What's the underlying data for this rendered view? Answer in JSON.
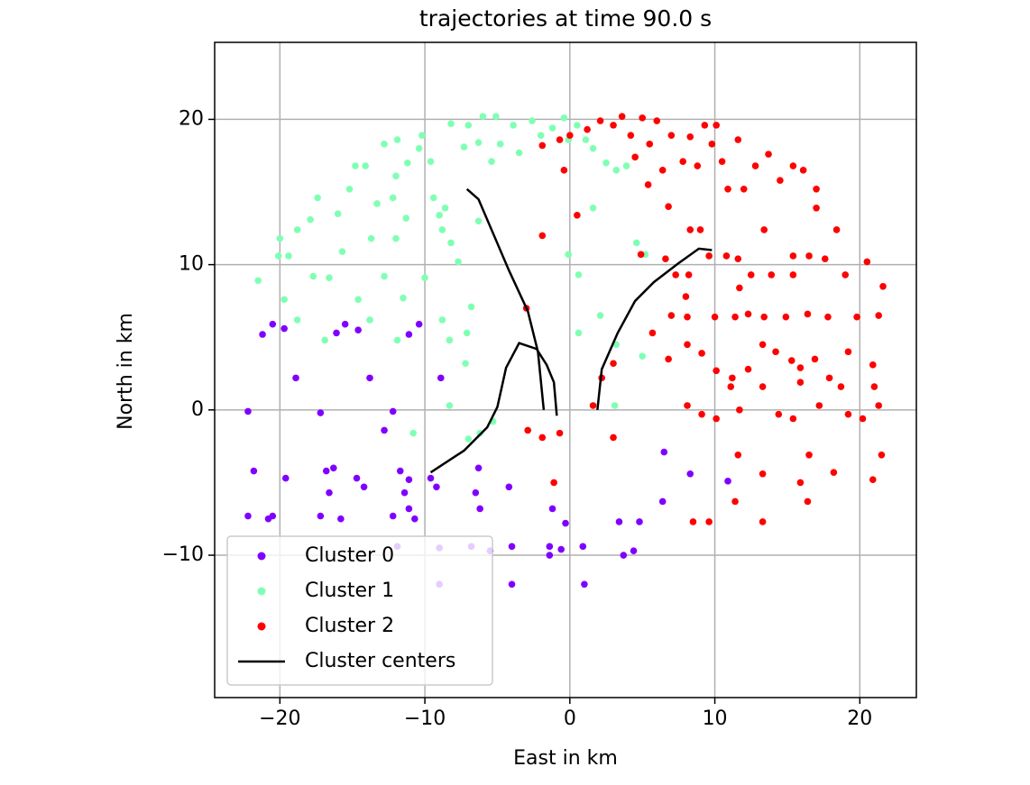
{
  "chart_data": {
    "type": "scatter",
    "title": "trajectories at time 90.0 s",
    "x_label": "East in km",
    "y_label": "North in km",
    "xlim": [
      -24.5,
      23.9
    ],
    "ylim": [
      -19.8,
      25.3
    ],
    "xticks": [
      {
        "value": -20,
        "label": "−20"
      },
      {
        "value": -10,
        "label": "−10"
      },
      0,
      10,
      20
    ],
    "yticks": [
      {
        "value": -10,
        "label": "−10"
      },
      0,
      10,
      20
    ],
    "grid": true,
    "legend": "lower left",
    "series": [
      {
        "name": "Cluster 0",
        "color": "#8000ff",
        "x": [
          -22.2,
          -21.8,
          -21.2,
          -20.5,
          -19.7,
          -19.6,
          -18.9,
          -17.2,
          -16.8,
          -15.5,
          -16.1,
          -14.6,
          -13.8,
          -12.8,
          -12.2,
          -11.1,
          -10.4,
          -8.9,
          -9.6,
          -9.2,
          -20.5,
          -22.2,
          -20.8,
          -16.6,
          -16.3,
          -15.8,
          -17.2,
          -14.7,
          -14.2,
          -11.7,
          -11.4,
          -11.1,
          -10.7,
          -12.2,
          -11.1,
          -6.3,
          -6.5,
          -6.2,
          -4.2,
          -1.2,
          -0.3,
          -1.4,
          -1.4,
          -0.6,
          0.9,
          -4.0,
          -4.0,
          1.0,
          3.4,
          4.8,
          4.4,
          3.7,
          6.5,
          6.4,
          8.3,
          10.9,
          -9.0,
          -9.0,
          -11.9,
          -6.8,
          -5.5
        ],
        "y": [
          -0.1,
          -4.2,
          5.2,
          5.9,
          5.6,
          -4.7,
          2.2,
          -0.2,
          -4.2,
          5.9,
          5.3,
          5.5,
          2.2,
          -1.4,
          -0.1,
          5.2,
          5.9,
          2.2,
          -4.7,
          -5.3,
          -7.3,
          -7.3,
          -7.5,
          -5.7,
          -4.0,
          -7.5,
          -7.3,
          -4.7,
          -5.3,
          -4.2,
          -5.7,
          -6.8,
          -7.5,
          -7.3,
          -4.8,
          -4.0,
          -5.7,
          -6.8,
          -5.3,
          -6.8,
          -7.8,
          -9.4,
          -10.0,
          -9.6,
          -9.4,
          -9.4,
          -12.0,
          -12.0,
          -7.7,
          -7.7,
          -9.7,
          -10.0,
          -2.9,
          -6.3,
          -4.4,
          -4.9,
          -9.5,
          -12.0,
          -9.4,
          -9.4,
          -9.7
        ]
      },
      {
        "name": "Cluster 1",
        "color": "#80ffb4",
        "x": [
          -21.5,
          -20.1,
          -19.4,
          -19.7,
          -18.8,
          -17.7,
          -16.9,
          -16.6,
          -15.7,
          -14.6,
          -13.8,
          -12.8,
          -11.9,
          -11.5,
          -10.0,
          -8.8,
          -8.3,
          -7.2,
          -8.3,
          -10.8,
          -7.0,
          -6.2,
          -5.3,
          -7.1,
          -6.8,
          -20.0,
          -18.8,
          -17.9,
          -17.4,
          -16.0,
          -15.2,
          -14.8,
          -14.1,
          -13.3,
          -13.7,
          -12.8,
          -11.9,
          -12.0,
          -12.2,
          -11.3,
          -12.0,
          -11.2,
          -10.4,
          -10.2,
          -9.6,
          -9.4,
          -8.8,
          -8.2,
          -7.7,
          -7.3,
          -8.2,
          -7.0,
          -6.0,
          -5.1,
          -6.3,
          -5.4,
          -4.8,
          -3.9,
          -3.5,
          -2.6,
          -2.0,
          -1.2,
          -0.4,
          -0.1,
          0.5,
          1.1,
          1.6,
          2.5,
          3.2,
          3.9,
          1.6,
          0.6,
          -0.1,
          2.1,
          0.6,
          3.2,
          5.0,
          3.1,
          4.6,
          5.2,
          -9.0,
          -8.6,
          -6.3
        ],
        "y": [
          8.9,
          10.6,
          10.6,
          7.6,
          6.2,
          9.2,
          4.8,
          9.1,
          10.9,
          7.6,
          6.2,
          9.2,
          4.8,
          7.7,
          9.1,
          6.2,
          4.8,
          3.2,
          0.3,
          -1.6,
          -2.0,
          -1.6,
          -0.8,
          5.3,
          7.1,
          11.8,
          12.4,
          13.1,
          14.6,
          13.5,
          15.2,
          16.8,
          16.8,
          14.2,
          11.8,
          18.3,
          18.6,
          16.1,
          14.6,
          13.2,
          11.8,
          17.0,
          18.0,
          18.9,
          17.1,
          14.6,
          12.4,
          11.5,
          10.2,
          18.1,
          19.7,
          19.6,
          20.2,
          20.2,
          18.4,
          17.1,
          18.3,
          19.6,
          17.7,
          19.9,
          18.9,
          19.4,
          20.1,
          18.6,
          19.6,
          18.6,
          18.0,
          17.0,
          16.5,
          16.8,
          13.9,
          9.3,
          10.7,
          6.5,
          5.3,
          4.5,
          3.7,
          0.3,
          11.5,
          10.7,
          13.4,
          13.9,
          13.0
        ]
      },
      {
        "name": "Cluster 2",
        "color": "#ff0000",
        "x": [
          -1.9,
          -0.7,
          0,
          -0.4,
          0.5,
          -1.9,
          -3.0,
          -2.9,
          -1.9,
          -0.7,
          -1.1,
          1.6,
          3.0,
          3.0,
          2.2,
          1.2,
          2.1,
          3.0,
          3.6,
          4.2,
          5.0,
          5.5,
          6.0,
          4.5,
          5.4,
          6.4,
          6.8,
          7.0,
          7.8,
          8.3,
          8.8,
          9.3,
          9.8,
          10.5,
          10.1,
          11.6,
          10.9,
          12.0,
          12.8,
          13.7,
          14.5,
          15.4,
          16.1,
          17.0,
          17.0,
          4.9,
          6.6,
          7.3,
          8.2,
          8.3,
          9.0,
          9.6,
          10.8,
          11.6,
          11.7,
          12.5,
          13.4,
          13.9,
          15.4,
          15.4,
          16.5,
          17.6,
          18.4,
          19.0,
          20.5,
          21.6,
          7.0,
          8.1,
          8.0,
          10.0,
          11.4,
          12.3,
          13.4,
          14.9,
          16.4,
          17.8,
          19.8,
          21.3,
          5.7,
          6.8,
          8.1,
          9.1,
          10.1,
          11.2,
          11.1,
          12.3,
          13.3,
          14.2,
          15.3,
          15.9,
          16.9,
          17.9,
          19.2,
          20.9,
          21.0,
          21.3,
          8.1,
          9.1,
          10.1,
          11.7,
          13.3,
          14.4,
          15.4,
          15.9,
          17.2,
          18.7,
          19.2,
          20.2,
          21.5,
          20.9,
          18.2,
          16.5,
          15.9,
          16.4,
          13.3,
          11.6,
          11.4,
          8.5,
          9.6,
          13.3
        ],
        "y": [
          18.2,
          18.6,
          18.9,
          16.5,
          13.4,
          12.0,
          7.0,
          -1.4,
          -1.9,
          -1.6,
          -5.0,
          0.3,
          -1.9,
          3.2,
          2.2,
          19.3,
          19.9,
          19.6,
          20.2,
          18.9,
          20.1,
          18.3,
          19.9,
          17.4,
          15.5,
          16.5,
          14.0,
          18.9,
          17.1,
          18.8,
          16.8,
          19.6,
          18.3,
          17.1,
          19.6,
          18.6,
          15.2,
          15.2,
          16.8,
          17.6,
          15.8,
          16.8,
          16.5,
          15.2,
          13.9,
          10.7,
          10.4,
          9.3,
          9.3,
          12.4,
          12.4,
          10.6,
          10.6,
          10.4,
          8.4,
          9.3,
          12.4,
          9.3,
          10.6,
          9.3,
          10.6,
          10.4,
          12.4,
          9.3,
          10.2,
          8.5,
          6.5,
          6.4,
          7.8,
          6.4,
          6.4,
          6.6,
          6.4,
          6.4,
          6.6,
          6.4,
          6.4,
          6.5,
          5.3,
          3.5,
          4.5,
          3.9,
          2.7,
          2.2,
          1.6,
          2.8,
          4.5,
          4.0,
          3.4,
          2.9,
          3.5,
          2.2,
          4.0,
          3.1,
          1.6,
          0.3,
          0.3,
          -0.3,
          -0.6,
          0,
          1.6,
          -0.3,
          -0.6,
          1.9,
          0.3,
          1.6,
          -0.3,
          -0.6,
          -3.1,
          -4.8,
          -4.3,
          -3.1,
          -5.0,
          -6.3,
          -4.4,
          -3.1,
          -6.3,
          -7.7,
          -7.7,
          -7.7
        ]
      }
    ],
    "centers": {
      "name": "Cluster centers",
      "color": "#000000",
      "lines": [
        {
          "x": [
            -7.1,
            -6.3,
            -5.4,
            -4.2,
            -2.9,
            -2.2,
            -1.8
          ],
          "y": [
            15.2,
            14.5,
            12.4,
            9.6,
            6.8,
            4.0,
            0
          ]
        },
        {
          "x": [
            -9.6,
            -7.3,
            -5.7,
            -5.0,
            -4.4,
            -3.5,
            -2.3,
            -1.6,
            -1.1,
            -0.9
          ],
          "y": [
            -4.3,
            -2.8,
            -1.2,
            0.2,
            2.9,
            4.6,
            4.2,
            3.1,
            1.9,
            -0.4
          ]
        },
        {
          "x": [
            1.9,
            2.2,
            3.3,
            4.5,
            5.8,
            7.5,
            8.9,
            9.8
          ],
          "y": [
            0,
            2.8,
            5.3,
            7.5,
            8.8,
            10.1,
            11.1,
            11.0
          ]
        }
      ]
    }
  }
}
